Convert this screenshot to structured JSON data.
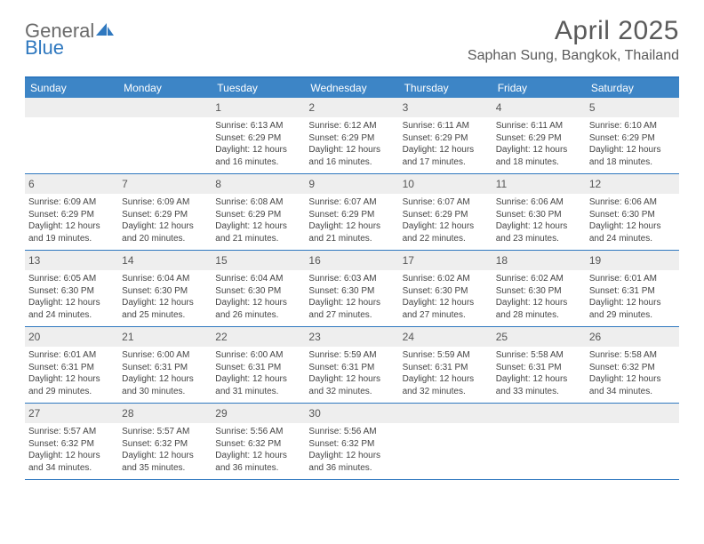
{
  "logo": {
    "word1": "General",
    "word2": "Blue"
  },
  "title": "April 2025",
  "location": "Saphan Sung, Bangkok, Thailand",
  "colors": {
    "header_bg": "#3d85c6",
    "border": "#2f78bf",
    "daynum_bg": "#eeeeee",
    "text": "#444444",
    "title_color": "#5a5a5a"
  },
  "weekdays": [
    "Sunday",
    "Monday",
    "Tuesday",
    "Wednesday",
    "Thursday",
    "Friday",
    "Saturday"
  ],
  "weeks": [
    [
      null,
      null,
      {
        "d": "1",
        "sr": "Sunrise: 6:13 AM",
        "ss": "Sunset: 6:29 PM",
        "dl": "Daylight: 12 hours and 16 minutes."
      },
      {
        "d": "2",
        "sr": "Sunrise: 6:12 AM",
        "ss": "Sunset: 6:29 PM",
        "dl": "Daylight: 12 hours and 16 minutes."
      },
      {
        "d": "3",
        "sr": "Sunrise: 6:11 AM",
        "ss": "Sunset: 6:29 PM",
        "dl": "Daylight: 12 hours and 17 minutes."
      },
      {
        "d": "4",
        "sr": "Sunrise: 6:11 AM",
        "ss": "Sunset: 6:29 PM",
        "dl": "Daylight: 12 hours and 18 minutes."
      },
      {
        "d": "5",
        "sr": "Sunrise: 6:10 AM",
        "ss": "Sunset: 6:29 PM",
        "dl": "Daylight: 12 hours and 18 minutes."
      }
    ],
    [
      {
        "d": "6",
        "sr": "Sunrise: 6:09 AM",
        "ss": "Sunset: 6:29 PM",
        "dl": "Daylight: 12 hours and 19 minutes."
      },
      {
        "d": "7",
        "sr": "Sunrise: 6:09 AM",
        "ss": "Sunset: 6:29 PM",
        "dl": "Daylight: 12 hours and 20 minutes."
      },
      {
        "d": "8",
        "sr": "Sunrise: 6:08 AM",
        "ss": "Sunset: 6:29 PM",
        "dl": "Daylight: 12 hours and 21 minutes."
      },
      {
        "d": "9",
        "sr": "Sunrise: 6:07 AM",
        "ss": "Sunset: 6:29 PM",
        "dl": "Daylight: 12 hours and 21 minutes."
      },
      {
        "d": "10",
        "sr": "Sunrise: 6:07 AM",
        "ss": "Sunset: 6:29 PM",
        "dl": "Daylight: 12 hours and 22 minutes."
      },
      {
        "d": "11",
        "sr": "Sunrise: 6:06 AM",
        "ss": "Sunset: 6:30 PM",
        "dl": "Daylight: 12 hours and 23 minutes."
      },
      {
        "d": "12",
        "sr": "Sunrise: 6:06 AM",
        "ss": "Sunset: 6:30 PM",
        "dl": "Daylight: 12 hours and 24 minutes."
      }
    ],
    [
      {
        "d": "13",
        "sr": "Sunrise: 6:05 AM",
        "ss": "Sunset: 6:30 PM",
        "dl": "Daylight: 12 hours and 24 minutes."
      },
      {
        "d": "14",
        "sr": "Sunrise: 6:04 AM",
        "ss": "Sunset: 6:30 PM",
        "dl": "Daylight: 12 hours and 25 minutes."
      },
      {
        "d": "15",
        "sr": "Sunrise: 6:04 AM",
        "ss": "Sunset: 6:30 PM",
        "dl": "Daylight: 12 hours and 26 minutes."
      },
      {
        "d": "16",
        "sr": "Sunrise: 6:03 AM",
        "ss": "Sunset: 6:30 PM",
        "dl": "Daylight: 12 hours and 27 minutes."
      },
      {
        "d": "17",
        "sr": "Sunrise: 6:02 AM",
        "ss": "Sunset: 6:30 PM",
        "dl": "Daylight: 12 hours and 27 minutes."
      },
      {
        "d": "18",
        "sr": "Sunrise: 6:02 AM",
        "ss": "Sunset: 6:30 PM",
        "dl": "Daylight: 12 hours and 28 minutes."
      },
      {
        "d": "19",
        "sr": "Sunrise: 6:01 AM",
        "ss": "Sunset: 6:31 PM",
        "dl": "Daylight: 12 hours and 29 minutes."
      }
    ],
    [
      {
        "d": "20",
        "sr": "Sunrise: 6:01 AM",
        "ss": "Sunset: 6:31 PM",
        "dl": "Daylight: 12 hours and 29 minutes."
      },
      {
        "d": "21",
        "sr": "Sunrise: 6:00 AM",
        "ss": "Sunset: 6:31 PM",
        "dl": "Daylight: 12 hours and 30 minutes."
      },
      {
        "d": "22",
        "sr": "Sunrise: 6:00 AM",
        "ss": "Sunset: 6:31 PM",
        "dl": "Daylight: 12 hours and 31 minutes."
      },
      {
        "d": "23",
        "sr": "Sunrise: 5:59 AM",
        "ss": "Sunset: 6:31 PM",
        "dl": "Daylight: 12 hours and 32 minutes."
      },
      {
        "d": "24",
        "sr": "Sunrise: 5:59 AM",
        "ss": "Sunset: 6:31 PM",
        "dl": "Daylight: 12 hours and 32 minutes."
      },
      {
        "d": "25",
        "sr": "Sunrise: 5:58 AM",
        "ss": "Sunset: 6:31 PM",
        "dl": "Daylight: 12 hours and 33 minutes."
      },
      {
        "d": "26",
        "sr": "Sunrise: 5:58 AM",
        "ss": "Sunset: 6:32 PM",
        "dl": "Daylight: 12 hours and 34 minutes."
      }
    ],
    [
      {
        "d": "27",
        "sr": "Sunrise: 5:57 AM",
        "ss": "Sunset: 6:32 PM",
        "dl": "Daylight: 12 hours and 34 minutes."
      },
      {
        "d": "28",
        "sr": "Sunrise: 5:57 AM",
        "ss": "Sunset: 6:32 PM",
        "dl": "Daylight: 12 hours and 35 minutes."
      },
      {
        "d": "29",
        "sr": "Sunrise: 5:56 AM",
        "ss": "Sunset: 6:32 PM",
        "dl": "Daylight: 12 hours and 36 minutes."
      },
      {
        "d": "30",
        "sr": "Sunrise: 5:56 AM",
        "ss": "Sunset: 6:32 PM",
        "dl": "Daylight: 12 hours and 36 minutes."
      },
      null,
      null,
      null
    ]
  ]
}
